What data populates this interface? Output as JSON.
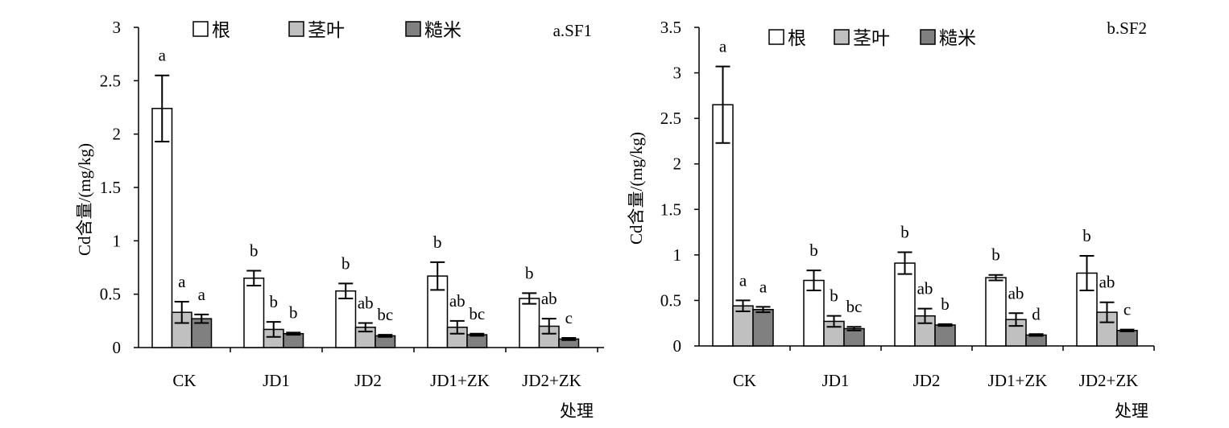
{
  "legend": [
    "根",
    "茎叶",
    "糙米"
  ],
  "colors": {
    "根": "#ffffff",
    "茎叶": "#c0c0c0",
    "糙米": "#808080",
    "axis": "#000000"
  },
  "chart_data": [
    {
      "type": "bar",
      "title": "a.SF1",
      "xlabel": "处理",
      "ylabel": "Cd含量/(mg/kg)",
      "ylim": [
        0,
        3
      ],
      "yticks": [
        "0",
        "0.5",
        "1",
        "1.5",
        "2",
        "2.5",
        "3"
      ],
      "ytick_values": [
        0,
        0.5,
        1,
        1.5,
        2,
        2.5,
        3
      ],
      "categories": [
        "CK",
        "JD1",
        "JD2",
        "JD1+ZK",
        "JD2+ZK"
      ],
      "legend_position": "top",
      "series": [
        {
          "name": "根",
          "values": [
            2.24,
            0.65,
            0.53,
            0.67,
            0.46
          ],
          "errors": [
            0.31,
            0.07,
            0.07,
            0.13,
            0.05
          ],
          "labels": [
            "a",
            "b",
            "b",
            "b",
            "b"
          ]
        },
        {
          "name": "茎叶",
          "values": [
            0.33,
            0.17,
            0.19,
            0.19,
            0.2
          ],
          "errors": [
            0.1,
            0.07,
            0.04,
            0.06,
            0.07
          ],
          "labels": [
            "a",
            "b",
            "ab",
            "ab",
            "ab"
          ]
        },
        {
          "name": "糙米",
          "values": [
            0.27,
            0.13,
            0.11,
            0.12,
            0.08
          ],
          "errors": [
            0.04,
            0.01,
            0.01,
            0.01,
            0.01
          ],
          "labels": [
            "a",
            "b",
            "bc",
            "bc",
            "c"
          ]
        }
      ]
    },
    {
      "type": "bar",
      "title": "b.SF2",
      "xlabel": "处理",
      "ylabel": "Cd含量/(mg/kg)",
      "ylim": [
        0,
        3.5
      ],
      "yticks": [
        "0",
        "0.5",
        "1",
        "1.5",
        "2",
        "2.5",
        "3",
        "3.5"
      ],
      "ytick_values": [
        0,
        0.5,
        1,
        1.5,
        2,
        2.5,
        3,
        3.5
      ],
      "categories": [
        "CK",
        "JD1",
        "JD2",
        "JD1+ZK",
        "JD2+ZK"
      ],
      "legend_position": "top",
      "series": [
        {
          "name": "根",
          "values": [
            2.65,
            0.72,
            0.91,
            0.75,
            0.8
          ],
          "errors": [
            0.42,
            0.11,
            0.12,
            0.03,
            0.19
          ],
          "labels": [
            "a",
            "b",
            "b",
            "b",
            "b"
          ]
        },
        {
          "name": "茎叶",
          "values": [
            0.44,
            0.27,
            0.33,
            0.29,
            0.37
          ],
          "errors": [
            0.06,
            0.06,
            0.08,
            0.07,
            0.11
          ],
          "labels": [
            "a",
            "b",
            "ab",
            "ab",
            "ab"
          ]
        },
        {
          "name": "糙米",
          "values": [
            0.4,
            0.19,
            0.23,
            0.12,
            0.17
          ],
          "errors": [
            0.03,
            0.02,
            0.01,
            0.01,
            0.01
          ],
          "labels": [
            "a",
            "bc",
            "b",
            "d",
            "c"
          ]
        }
      ]
    }
  ]
}
